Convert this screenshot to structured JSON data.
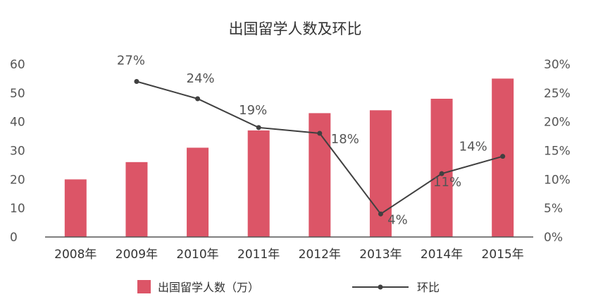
{
  "chart_data": {
    "type": "bar+line",
    "title": "出国留学人数及环比",
    "categories": [
      "2008年",
      "2009年",
      "2010年",
      "2011年",
      "2012年",
      "2013年",
      "2014年",
      "2015年"
    ],
    "series": [
      {
        "name": "出国留学人数（万）",
        "type": "bar",
        "axis": "left",
        "color": "#dc5567",
        "values": [
          20,
          26,
          31,
          37,
          43,
          44,
          48,
          55
        ]
      },
      {
        "name": "环比",
        "type": "line",
        "axis": "right",
        "color": "#404040",
        "values": [
          null,
          27,
          24,
          19,
          18,
          4,
          11,
          14
        ],
        "labels": [
          "",
          "27%",
          "24%",
          "19%",
          "18%",
          "4%",
          "11%",
          "14%"
        ]
      }
    ],
    "y_left": {
      "min": 0,
      "max": 60,
      "ticks": [
        "0",
        "10",
        "20",
        "30",
        "40",
        "50",
        "60"
      ]
    },
    "y_right": {
      "min": 0,
      "max": 30,
      "ticks": [
        "0%",
        "5%",
        "10%",
        "15%",
        "20%",
        "25%",
        "30%"
      ]
    },
    "grid": false,
    "legend": "bottom"
  }
}
